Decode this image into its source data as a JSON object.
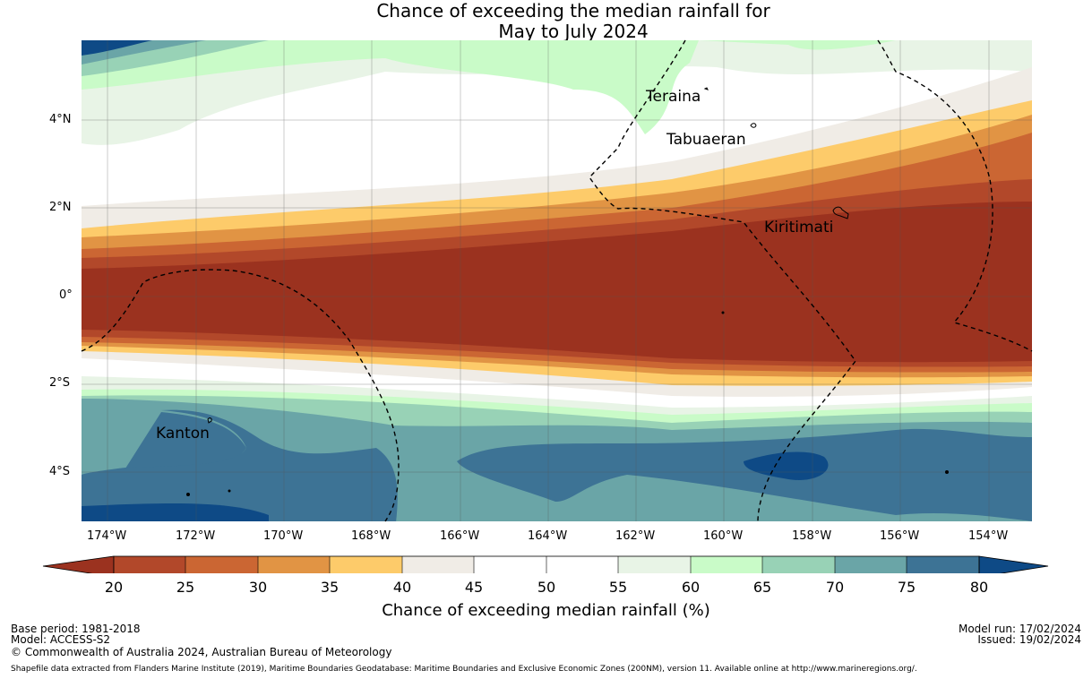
{
  "title": {
    "line1": "Chance of exceeding the median rainfall for",
    "line2": "May to July 2024"
  },
  "map": {
    "lat_labels": [
      "4°N",
      "2°N",
      "0°",
      "2°S",
      "4°S"
    ],
    "lon_labels": [
      "174°W",
      "172°W",
      "170°W",
      "168°W",
      "166°W",
      "164°W",
      "162°W",
      "160°W",
      "158°W",
      "156°W",
      "154°W"
    ],
    "places": [
      "Teraina",
      "Tabuaeran",
      "Kiritimati",
      "Kanton"
    ],
    "colors": {
      "c20": "#9b321f",
      "c25": "#b2482a",
      "c30": "#cb6633",
      "c35": "#e19444",
      "c40": "#fdcb6a",
      "c45": "#f0ece6",
      "c50": "#ffffff",
      "c55": "#e8f4e6",
      "c60": "#c9fbc8",
      "c65": "#98d2b6",
      "c70": "#6aa5a7",
      "c75": "#3d7395",
      "c80": "#0e4a86"
    }
  },
  "colorbar": {
    "ticks": [
      "20",
      "25",
      "30",
      "35",
      "40",
      "45",
      "50",
      "55",
      "60",
      "65",
      "70",
      "75",
      "80"
    ],
    "label": "Chance of exceeding median rainfall (%)"
  },
  "footer": {
    "base_period": "Base period: 1981-2018",
    "model": "Model: ACCESS-S2",
    "copyright": "© Commonwealth of Australia 2024, Australian Bureau of Meteorology",
    "model_run": "Model run: 17/02/2024",
    "issued": "Issued: 19/02/2024",
    "shapefile": "Shapefile data extracted from Flanders Marine Institute (2019), Maritime Boundaries Geodatabase: Maritime Boundaries and Exclusive Economic Zones (200NM), version 11. Available online at http://www.marineregions.org/."
  }
}
